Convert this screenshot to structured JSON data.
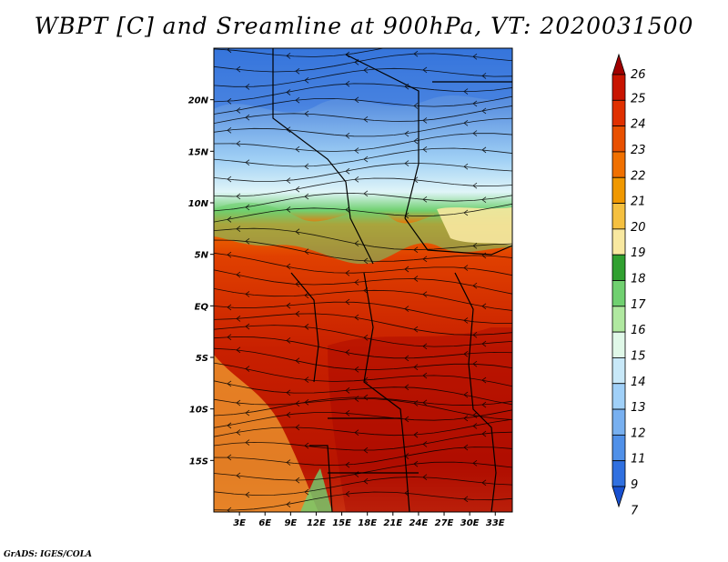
{
  "title": "WBPT [C] and Sreamline at 900hPa, VT: 2020031500",
  "footer": "GrADS: IGES/COLA",
  "map": {
    "lon_range": [
      0,
      35
    ],
    "lat_range": [
      -20,
      25
    ],
    "x_ticks": [
      "3E",
      "6E",
      "9E",
      "12E",
      "15E",
      "18E",
      "21E",
      "24E",
      "27E",
      "30E",
      "33E"
    ],
    "y_ticks": [
      "20N",
      "15N",
      "10N",
      "5N",
      "EQ",
      "5S",
      "10S",
      "15S"
    ]
  },
  "colorbar": {
    "labels": [
      "26",
      "25",
      "24",
      "23",
      "22",
      "21",
      "20",
      "19",
      "18",
      "17",
      "16",
      "15",
      "14",
      "13",
      "12",
      "11",
      "9",
      "7"
    ],
    "colors": [
      "#a00000",
      "#c81400",
      "#e03000",
      "#e85000",
      "#f07000",
      "#f09800",
      "#f5c040",
      "#f8e8a0",
      "#30a030",
      "#70d070",
      "#b0e8a0",
      "#e0f8e8",
      "#c8e8f8",
      "#a0d0f8",
      "#78b0f0",
      "#5090e8",
      "#3070e0",
      "#1850d0"
    ]
  }
}
